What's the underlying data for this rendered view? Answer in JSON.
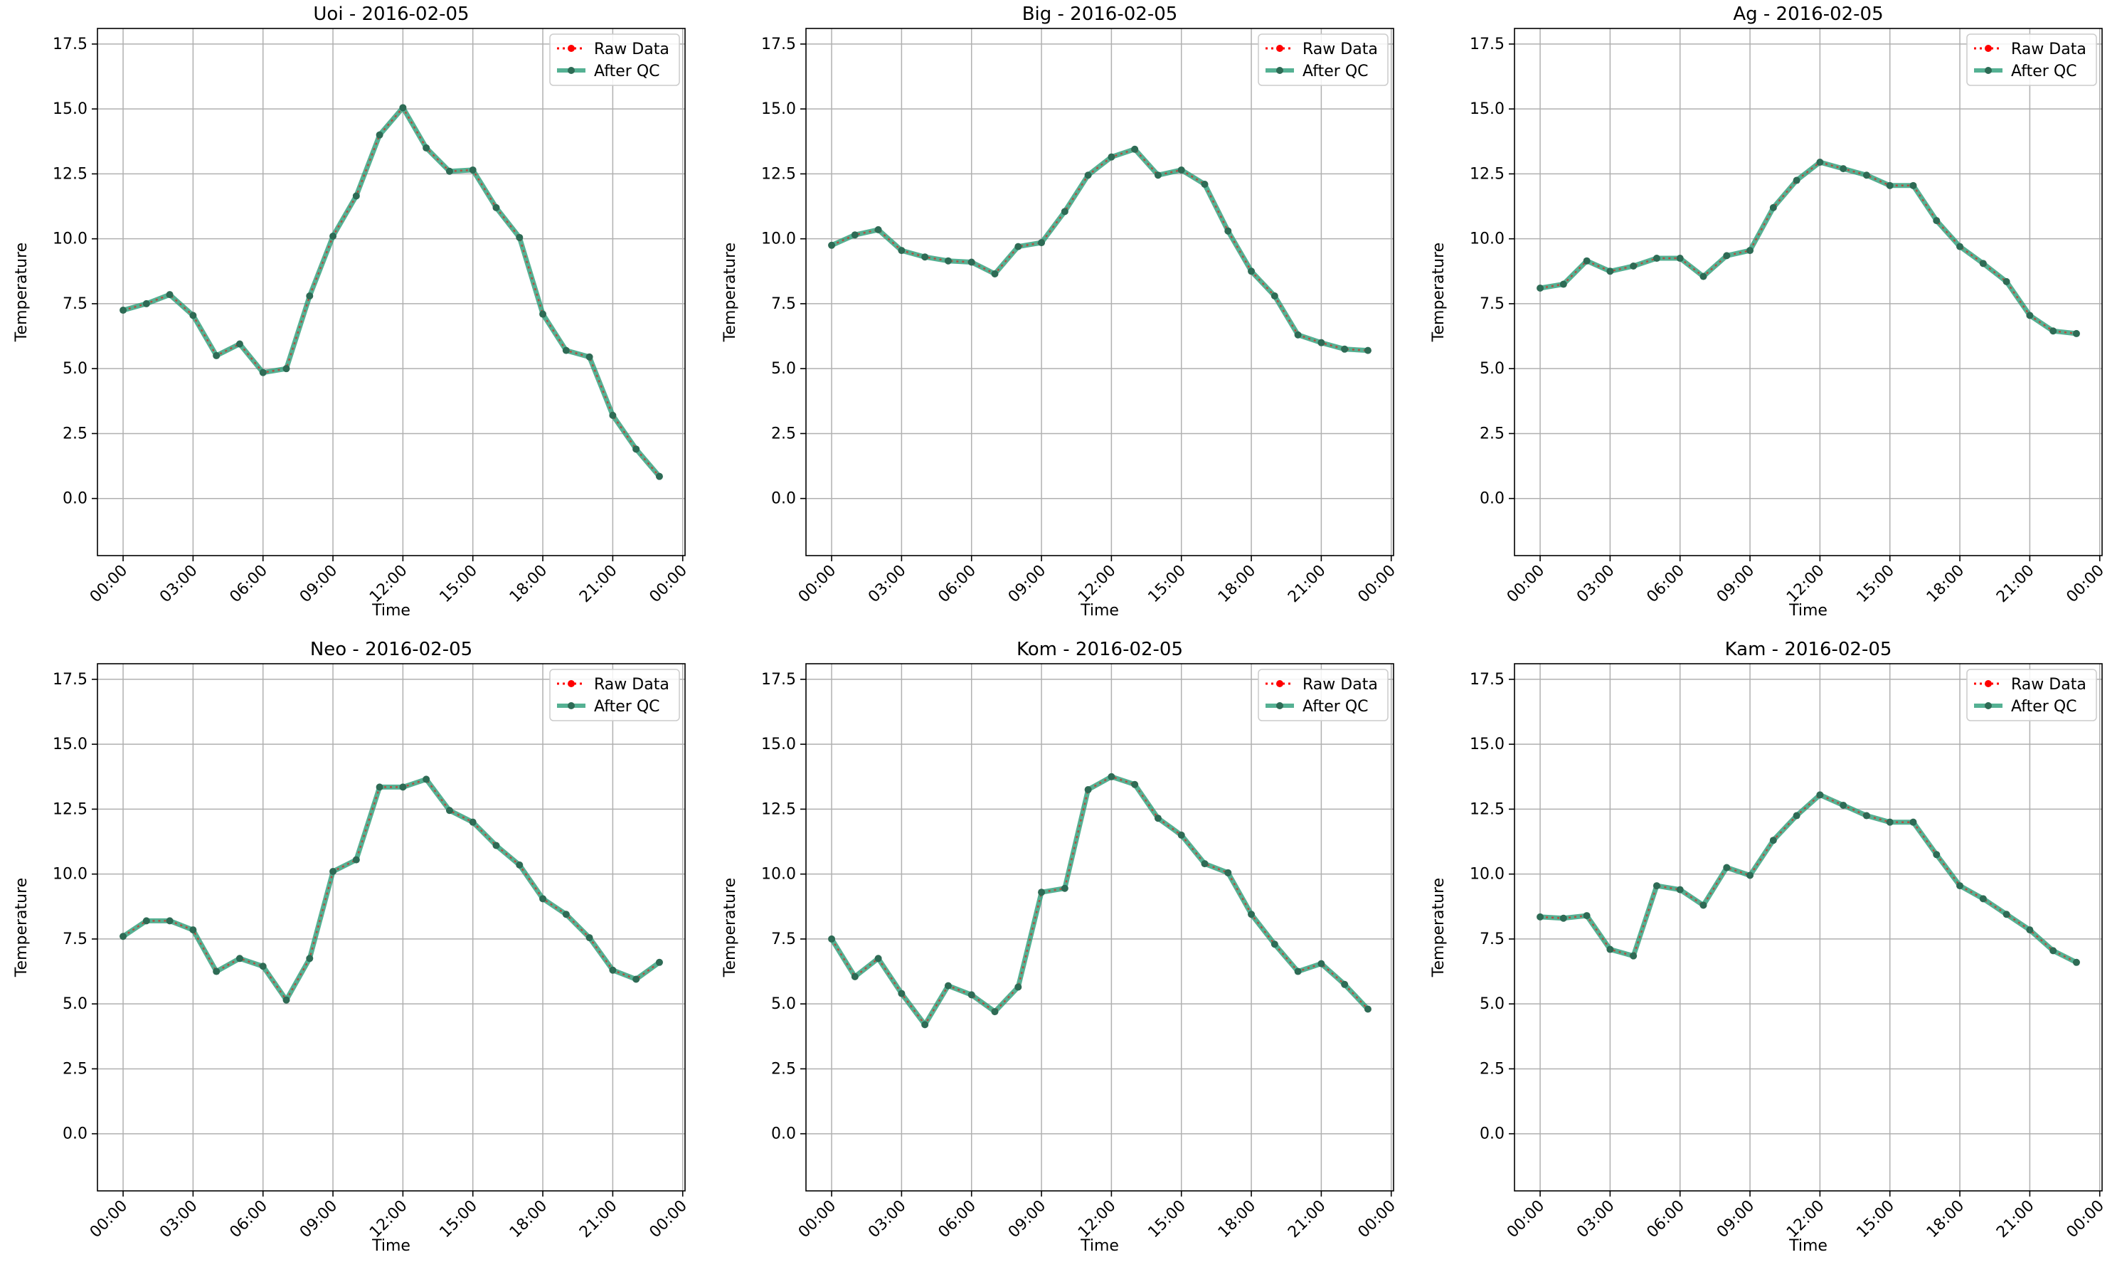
{
  "figure": {
    "ylabel": "Temperature",
    "xlabel": "Time",
    "legend": [
      "Raw Data",
      "After QC"
    ],
    "x_ticks": [
      "00:00",
      "03:00",
      "06:00",
      "09:00",
      "12:00",
      "15:00",
      "18:00",
      "21:00",
      "00:00"
    ],
    "y_ticks": [
      "0.0",
      "2.5",
      "5.0",
      "7.5",
      "10.0",
      "12.5",
      "15.0",
      "17.5"
    ],
    "colors": {
      "raw": "#ff0000",
      "qc": "#2a9d78",
      "grid": "#b0b0b0",
      "marker": "#2e6b55"
    }
  },
  "chart_data": [
    {
      "type": "line",
      "title": "Uoi - 2016-02-05",
      "xlabel": "Time",
      "ylabel": "Temperature",
      "x": [
        "00:00",
        "01:00",
        "02:00",
        "03:00",
        "04:00",
        "05:00",
        "06:00",
        "07:00",
        "08:00",
        "09:00",
        "10:00",
        "11:00",
        "12:00",
        "13:00",
        "14:00",
        "15:00",
        "16:00",
        "17:00",
        "18:00",
        "19:00",
        "20:00",
        "21:00",
        "22:00",
        "23:00"
      ],
      "xlim": [
        "2016-02-05 00:00",
        "2016-02-06 00:00"
      ],
      "ylim": [
        -2.2,
        18.1
      ],
      "grid": true,
      "legend_position": "top-right",
      "series": [
        {
          "name": "Raw Data",
          "values": [
            7.25,
            7.5,
            7.85,
            7.05,
            5.5,
            5.95,
            4.85,
            5.0,
            7.8,
            10.1,
            11.65,
            14.0,
            15.05,
            13.5,
            12.6,
            12.65,
            11.2,
            10.05,
            7.1,
            5.7,
            5.45,
            3.2,
            1.9,
            0.85
          ]
        },
        {
          "name": "After QC",
          "values": [
            7.25,
            7.5,
            7.85,
            7.05,
            5.5,
            5.95,
            4.85,
            5.0,
            7.8,
            10.1,
            11.65,
            14.0,
            15.05,
            13.5,
            12.6,
            12.65,
            11.2,
            10.05,
            7.1,
            5.7,
            5.45,
            3.2,
            1.9,
            0.85
          ]
        }
      ]
    },
    {
      "type": "line",
      "title": "Big - 2016-02-05",
      "xlabel": "Time",
      "ylabel": "Temperature",
      "x": [
        "00:00",
        "01:00",
        "02:00",
        "03:00",
        "04:00",
        "05:00",
        "06:00",
        "07:00",
        "08:00",
        "09:00",
        "10:00",
        "11:00",
        "12:00",
        "13:00",
        "14:00",
        "15:00",
        "16:00",
        "17:00",
        "18:00",
        "19:00",
        "20:00",
        "21:00",
        "22:00",
        "23:00"
      ],
      "xlim": [
        "2016-02-05 00:00",
        "2016-02-06 00:00"
      ],
      "ylim": [
        -2.2,
        18.1
      ],
      "grid": true,
      "legend_position": "top-right",
      "series": [
        {
          "name": "Raw Data",
          "values": [
            9.75,
            10.15,
            10.35,
            9.55,
            9.3,
            9.15,
            9.1,
            8.65,
            9.7,
            9.85,
            11.05,
            12.45,
            13.15,
            13.45,
            12.45,
            12.65,
            12.1,
            10.3,
            8.75,
            7.8,
            6.3,
            6.0,
            5.75,
            5.7
          ]
        },
        {
          "name": "After QC",
          "values": [
            9.75,
            10.15,
            10.35,
            9.55,
            9.3,
            9.15,
            9.1,
            8.65,
            9.7,
            9.85,
            11.05,
            12.45,
            13.15,
            13.45,
            12.45,
            12.65,
            12.1,
            10.3,
            8.75,
            7.8,
            6.3,
            6.0,
            5.75,
            5.7
          ]
        }
      ]
    },
    {
      "type": "line",
      "title": "Ag - 2016-02-05",
      "xlabel": "Time",
      "ylabel": "Temperature",
      "x": [
        "00:00",
        "01:00",
        "02:00",
        "03:00",
        "04:00",
        "05:00",
        "06:00",
        "07:00",
        "08:00",
        "09:00",
        "10:00",
        "11:00",
        "12:00",
        "13:00",
        "14:00",
        "15:00",
        "16:00",
        "17:00",
        "18:00",
        "19:00",
        "20:00",
        "21:00",
        "22:00",
        "23:00"
      ],
      "xlim": [
        "2016-02-05 00:00",
        "2016-02-06 00:00"
      ],
      "ylim": [
        -2.2,
        18.1
      ],
      "grid": true,
      "legend_position": "top-right",
      "series": [
        {
          "name": "Raw Data",
          "values": [
            8.1,
            8.25,
            9.15,
            8.75,
            8.95,
            9.25,
            9.25,
            8.55,
            9.35,
            9.55,
            11.2,
            12.25,
            12.95,
            12.7,
            12.45,
            12.05,
            12.05,
            10.7,
            9.7,
            9.05,
            8.35,
            7.05,
            6.45,
            6.35
          ]
        },
        {
          "name": "After QC",
          "values": [
            8.1,
            8.25,
            9.15,
            8.75,
            8.95,
            9.25,
            9.25,
            8.55,
            9.35,
            9.55,
            11.2,
            12.25,
            12.95,
            12.7,
            12.45,
            12.05,
            12.05,
            10.7,
            9.7,
            9.05,
            8.35,
            7.05,
            6.45,
            6.35
          ]
        }
      ]
    },
    {
      "type": "line",
      "title": "Neo - 2016-02-05",
      "xlabel": "Time",
      "ylabel": "Temperature",
      "x": [
        "00:00",
        "01:00",
        "02:00",
        "03:00",
        "04:00",
        "05:00",
        "06:00",
        "07:00",
        "08:00",
        "09:00",
        "10:00",
        "11:00",
        "12:00",
        "13:00",
        "14:00",
        "15:00",
        "16:00",
        "17:00",
        "18:00",
        "19:00",
        "20:00",
        "21:00",
        "22:00",
        "23:00"
      ],
      "xlim": [
        "2016-02-05 00:00",
        "2016-02-06 00:00"
      ],
      "ylim": [
        -2.2,
        18.1
      ],
      "grid": true,
      "legend_position": "top-right",
      "series": [
        {
          "name": "Raw Data",
          "values": [
            7.6,
            8.2,
            8.2,
            7.85,
            6.25,
            6.75,
            6.45,
            5.15,
            6.75,
            10.1,
            10.55,
            13.35,
            13.35,
            13.65,
            12.45,
            12.0,
            11.1,
            10.35,
            9.05,
            8.45,
            7.55,
            6.3,
            5.95,
            6.6
          ]
        },
        {
          "name": "After QC",
          "values": [
            7.6,
            8.2,
            8.2,
            7.85,
            6.25,
            6.75,
            6.45,
            5.15,
            6.75,
            10.1,
            10.55,
            13.35,
            13.35,
            13.65,
            12.45,
            12.0,
            11.1,
            10.35,
            9.05,
            8.45,
            7.55,
            6.3,
            5.95,
            6.6
          ]
        }
      ]
    },
    {
      "type": "line",
      "title": "Kom - 2016-02-05",
      "xlabel": "Time",
      "ylabel": "Temperature",
      "x": [
        "00:00",
        "01:00",
        "02:00",
        "03:00",
        "04:00",
        "05:00",
        "06:00",
        "07:00",
        "08:00",
        "09:00",
        "10:00",
        "11:00",
        "12:00",
        "13:00",
        "14:00",
        "15:00",
        "16:00",
        "17:00",
        "18:00",
        "19:00",
        "20:00",
        "21:00",
        "22:00",
        "23:00"
      ],
      "xlim": [
        "2016-02-05 00:00",
        "2016-02-06 00:00"
      ],
      "ylim": [
        -2.2,
        18.1
      ],
      "grid": true,
      "legend_position": "top-right",
      "series": [
        {
          "name": "Raw Data",
          "values": [
            7.5,
            6.05,
            6.75,
            5.4,
            4.2,
            5.7,
            5.35,
            4.7,
            5.65,
            9.3,
            9.45,
            13.25,
            13.75,
            13.45,
            12.15,
            11.5,
            10.4,
            10.05,
            8.45,
            7.3,
            6.25,
            6.55,
            5.75,
            4.8
          ]
        },
        {
          "name": "After QC",
          "values": [
            7.5,
            6.05,
            6.75,
            5.4,
            4.2,
            5.7,
            5.35,
            4.7,
            5.65,
            9.3,
            9.45,
            13.25,
            13.75,
            13.45,
            12.15,
            11.5,
            10.4,
            10.05,
            8.45,
            7.3,
            6.25,
            6.55,
            5.75,
            4.8
          ]
        }
      ]
    },
    {
      "type": "line",
      "title": "Kam - 2016-02-05",
      "xlabel": "Time",
      "ylabel": "Temperature",
      "x": [
        "00:00",
        "01:00",
        "02:00",
        "03:00",
        "04:00",
        "05:00",
        "06:00",
        "07:00",
        "08:00",
        "09:00",
        "10:00",
        "11:00",
        "12:00",
        "13:00",
        "14:00",
        "15:00",
        "16:00",
        "17:00",
        "18:00",
        "19:00",
        "20:00",
        "21:00",
        "22:00",
        "23:00"
      ],
      "xlim": [
        "2016-02-05 00:00",
        "2016-02-06 00:00"
      ],
      "ylim": [
        -2.2,
        18.1
      ],
      "grid": true,
      "legend_position": "top-right",
      "series": [
        {
          "name": "Raw Data",
          "values": [
            8.35,
            8.3,
            8.4,
            7.1,
            6.85,
            9.55,
            9.4,
            8.8,
            10.25,
            9.95,
            11.3,
            12.25,
            13.05,
            12.65,
            12.25,
            12.0,
            12.0,
            10.75,
            9.55,
            9.05,
            8.45,
            7.85,
            7.05,
            6.6
          ]
        },
        {
          "name": "After QC",
          "values": [
            8.35,
            8.3,
            8.4,
            7.1,
            6.85,
            9.55,
            9.4,
            8.8,
            10.25,
            9.95,
            11.3,
            12.25,
            13.05,
            12.65,
            12.25,
            12.0,
            12.0,
            10.75,
            9.55,
            9.05,
            8.45,
            7.85,
            7.05,
            6.6
          ]
        }
      ]
    }
  ]
}
